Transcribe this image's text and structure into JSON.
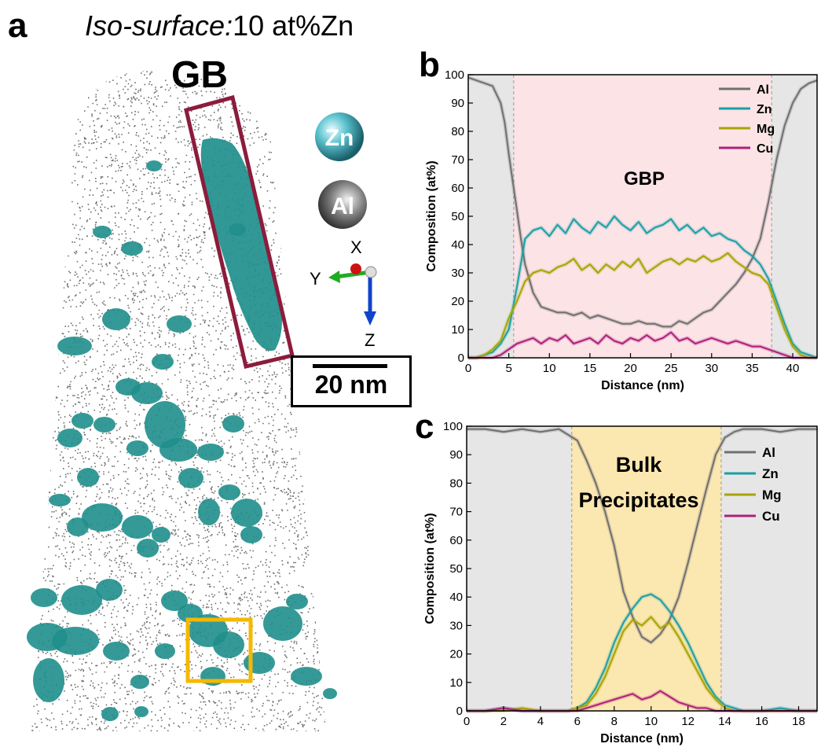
{
  "panel_a": {
    "label": "a",
    "title_italic": "Iso-surface:",
    "title_rest": "10 at%Zn",
    "gb_label": "GB",
    "legend_atoms": [
      {
        "name": "Zn",
        "color": "#4fb8c4"
      },
      {
        "name": "Al",
        "color": "#6a6a6a"
      }
    ],
    "axes": {
      "x": "X",
      "y": "Y",
      "z": "Z"
    },
    "scale_bar": "20 nm",
    "colors": {
      "precipitate": "#1f8f8c",
      "gb_box": "#8c1c3c",
      "bulk_box": "#f5b800",
      "atoms": "#6f6f6f"
    }
  },
  "chart_data": [
    {
      "panel_label": "b",
      "type": "line",
      "annotation": "GBP",
      "xlabel": "Distance (nm)",
      "ylabel": "Composition (at%)",
      "xlim": [
        0,
        43
      ],
      "ylim": [
        0,
        100
      ],
      "xticks": [
        0,
        5,
        10,
        15,
        20,
        25,
        30,
        35,
        40
      ],
      "yticks": [
        0,
        10,
        20,
        30,
        40,
        50,
        60,
        70,
        80,
        90,
        100
      ],
      "shaded_regions": [
        {
          "from": 0,
          "to": 5.6,
          "color": "#e6e6e6"
        },
        {
          "from": 5.6,
          "to": 37.4,
          "color": "#fbe3e6"
        },
        {
          "from": 37.4,
          "to": 43,
          "color": "#e6e6e6"
        }
      ],
      "legend": "top-right",
      "series": [
        {
          "name": "Al",
          "color": "#707070",
          "x": [
            0,
            1,
            2,
            3,
            4,
            4.5,
            5,
            5.5,
            6,
            6.5,
            7,
            8,
            9,
            10,
            11,
            12,
            13,
            14,
            15,
            16,
            17,
            18,
            19,
            20,
            21,
            22,
            23,
            24,
            25,
            26,
            27,
            28,
            29,
            30,
            31,
            32,
            33,
            34,
            35,
            36,
            37,
            38,
            39,
            40,
            41,
            42,
            43
          ],
          "y": [
            99,
            98,
            97,
            96,
            90,
            83,
            72,
            62,
            52,
            42,
            33,
            23,
            18,
            17,
            16,
            16,
            15,
            16,
            14,
            15,
            14,
            13,
            12,
            12,
            13,
            12,
            12,
            11,
            11,
            13,
            12,
            14,
            16,
            17,
            20,
            23,
            26,
            30,
            35,
            42,
            55,
            70,
            82,
            90,
            95,
            97,
            98
          ]
        },
        {
          "name": "Zn",
          "color": "#1aa0a4",
          "x": [
            0,
            1,
            2,
            3,
            4,
            5,
            6,
            7,
            8,
            9,
            10,
            11,
            12,
            13,
            14,
            15,
            16,
            17,
            18,
            19,
            20,
            21,
            22,
            23,
            24,
            25,
            26,
            27,
            28,
            29,
            30,
            31,
            32,
            33,
            34,
            35,
            36,
            37,
            38,
            39,
            40,
            41,
            42,
            43
          ],
          "y": [
            0,
            0,
            1,
            2,
            5,
            10,
            25,
            42,
            45,
            46,
            43,
            47,
            44,
            49,
            46,
            44,
            48,
            46,
            50,
            47,
            45,
            48,
            44,
            46,
            47,
            49,
            45,
            47,
            44,
            46,
            43,
            44,
            42,
            41,
            38,
            36,
            33,
            28,
            20,
            12,
            5,
            2,
            1,
            0
          ]
        },
        {
          "name": "Mg",
          "color": "#a8a400",
          "x": [
            0,
            1,
            2,
            3,
            4,
            5,
            6,
            7,
            8,
            9,
            10,
            11,
            12,
            13,
            14,
            15,
            16,
            17,
            18,
            19,
            20,
            21,
            22,
            23,
            24,
            25,
            26,
            27,
            28,
            29,
            30,
            31,
            32,
            33,
            34,
            35,
            36,
            37,
            38,
            39,
            40,
            41,
            42,
            43
          ],
          "y": [
            0,
            0,
            1,
            3,
            6,
            14,
            20,
            27,
            30,
            31,
            30,
            32,
            33,
            35,
            31,
            33,
            30,
            33,
            31,
            34,
            32,
            35,
            30,
            32,
            34,
            35,
            33,
            35,
            34,
            36,
            34,
            35,
            37,
            34,
            32,
            30,
            29,
            26,
            18,
            10,
            4,
            1,
            0,
            0
          ]
        },
        {
          "name": "Cu",
          "color": "#b0207a",
          "x": [
            0,
            1,
            2,
            3,
            4,
            5,
            6,
            7,
            8,
            9,
            10,
            11,
            12,
            13,
            14,
            15,
            16,
            17,
            18,
            19,
            20,
            21,
            22,
            23,
            24,
            25,
            26,
            27,
            28,
            29,
            30,
            31,
            32,
            33,
            34,
            35,
            36,
            37,
            38,
            39,
            40,
            41,
            42,
            43
          ],
          "y": [
            0,
            0,
            0,
            0,
            1,
            3,
            5,
            6,
            7,
            5,
            7,
            6,
            8,
            5,
            6,
            7,
            5,
            8,
            6,
            5,
            7,
            6,
            8,
            6,
            7,
            9,
            6,
            7,
            5,
            6,
            7,
            6,
            5,
            6,
            5,
            4,
            4,
            3,
            2,
            1,
            0,
            0,
            0,
            0
          ]
        }
      ]
    },
    {
      "panel_label": "c",
      "type": "line",
      "annotation": "Bulk Precipitates",
      "xlabel": "Distance (nm)",
      "ylabel": "Composition (at%)",
      "xlim": [
        0,
        19
      ],
      "ylim": [
        0,
        100
      ],
      "xticks": [
        0,
        2,
        4,
        6,
        8,
        10,
        12,
        14,
        16,
        18
      ],
      "yticks": [
        0,
        10,
        20,
        30,
        40,
        50,
        60,
        70,
        80,
        90,
        100
      ],
      "shaded_regions": [
        {
          "from": 0,
          "to": 5.7,
          "color": "#e6e6e6"
        },
        {
          "from": 5.7,
          "to": 13.8,
          "color": "#fbe7b0"
        },
        {
          "from": 13.8,
          "to": 19,
          "color": "#e6e6e6"
        }
      ],
      "legend": "top-right",
      "series": [
        {
          "name": "Al",
          "color": "#707070",
          "x": [
            0,
            1,
            2,
            3,
            4,
            5,
            5.5,
            6,
            6.5,
            7,
            7.5,
            8,
            8.5,
            9,
            9.5,
            10,
            10.5,
            11,
            11.5,
            12,
            12.5,
            13,
            13.5,
            14,
            14.5,
            15,
            16,
            17,
            18,
            19
          ],
          "y": [
            99,
            99,
            98,
            99,
            98,
            99,
            97,
            95,
            88,
            80,
            70,
            58,
            42,
            33,
            26,
            24,
            27,
            32,
            40,
            52,
            65,
            78,
            90,
            96,
            98,
            99,
            99,
            98,
            99,
            99
          ]
        },
        {
          "name": "Zn",
          "color": "#1aa0a4",
          "x": [
            0,
            1,
            2,
            3,
            4,
            5,
            5.5,
            6,
            6.5,
            7,
            7.5,
            8,
            8.5,
            9,
            9.5,
            10,
            10.5,
            11,
            11.5,
            12,
            12.5,
            13,
            13.5,
            14,
            14.5,
            15,
            16,
            17,
            18,
            19
          ],
          "y": [
            0,
            0,
            1,
            0,
            0,
            0,
            0,
            1,
            3,
            8,
            15,
            24,
            31,
            36,
            40,
            41,
            39,
            35,
            30,
            24,
            17,
            10,
            5,
            2,
            1,
            0,
            0,
            1,
            0,
            0
          ]
        },
        {
          "name": "Mg",
          "color": "#a8a400",
          "x": [
            0,
            1,
            2,
            3,
            4,
            5,
            5.5,
            6,
            6.5,
            7,
            7.5,
            8,
            8.5,
            9,
            9.5,
            10,
            10.5,
            11,
            11.5,
            12,
            12.5,
            13,
            13.5,
            14,
            14.5,
            15,
            16,
            17,
            18,
            19
          ],
          "y": [
            0,
            0,
            0,
            1,
            0,
            0,
            0,
            1,
            2,
            6,
            12,
            20,
            28,
            32,
            30,
            33,
            29,
            31,
            26,
            20,
            14,
            8,
            4,
            1,
            0,
            0,
            0,
            0,
            0,
            0
          ]
        },
        {
          "name": "Cu",
          "color": "#b0207a",
          "x": [
            0,
            1,
            2,
            3,
            4,
            5,
            5.5,
            6,
            6.5,
            7,
            7.5,
            8,
            8.5,
            9,
            9.5,
            10,
            10.5,
            11,
            11.5,
            12,
            12.5,
            13,
            13.5,
            14,
            14.5,
            15,
            16,
            17,
            18,
            19
          ],
          "y": [
            0,
            0,
            1,
            0,
            0,
            0,
            0,
            0,
            1,
            2,
            3,
            4,
            5,
            6,
            4,
            5,
            7,
            5,
            3,
            2,
            1,
            1,
            0,
            0,
            0,
            0,
            0,
            0,
            0,
            0
          ]
        }
      ]
    }
  ]
}
